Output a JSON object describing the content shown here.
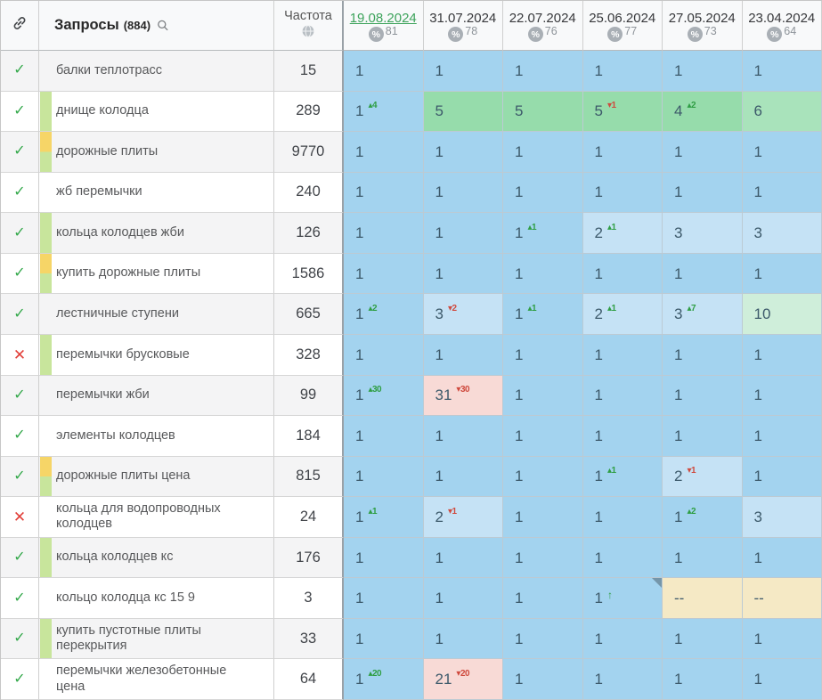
{
  "header": {
    "queries_label": "Запросы",
    "queries_count": "(884)",
    "frequency_label": "Частота",
    "percent_symbol": "%",
    "dates": [
      {
        "label": "19.08.2024",
        "percent": "81",
        "active": true
      },
      {
        "label": "31.07.2024",
        "percent": "78",
        "active": false
      },
      {
        "label": "22.07.2024",
        "percent": "76",
        "active": false
      },
      {
        "label": "25.06.2024",
        "percent": "77",
        "active": false
      },
      {
        "label": "27.05.2024",
        "percent": "73",
        "active": false
      },
      {
        "label": "23.04.2024",
        "percent": "64",
        "active": false
      }
    ]
  },
  "icons": {
    "check": "✓",
    "cross": "✕",
    "delta_up": "▴",
    "delta_down": "▾",
    "arrow_up": "↑"
  },
  "colors": {
    "p1": "#a3d3ef",
    "p2": "#c5e2f5",
    "g5": "#96dcab",
    "g6": "#a9e3bb",
    "g10": "#cfeeda",
    "pink": "#f8dad6",
    "na": "#f5e9c5",
    "strip_green": "#c8e59c",
    "strip_yellow": "#f6d567",
    "check_green": "#35a94c",
    "cross_red": "#e2403a",
    "active_date_green": "#3da35b"
  },
  "rows": [
    {
      "status": "check",
      "strip": "none",
      "keyword": "балки теплотрасс",
      "frequency": "15",
      "cells": [
        {
          "v": "1",
          "bg": "p1"
        },
        {
          "v": "1",
          "bg": "p1"
        },
        {
          "v": "1",
          "bg": "p1"
        },
        {
          "v": "1",
          "bg": "p1"
        },
        {
          "v": "1",
          "bg": "p1"
        },
        {
          "v": "1",
          "bg": "p1"
        }
      ]
    },
    {
      "status": "check",
      "strip": "green",
      "keyword": "днище колодца",
      "frequency": "289",
      "cells": [
        {
          "v": "1",
          "bg": "p1",
          "delta": "4",
          "dir": "up"
        },
        {
          "v": "5",
          "bg": "g5"
        },
        {
          "v": "5",
          "bg": "g5"
        },
        {
          "v": "5",
          "bg": "g5",
          "delta": "1",
          "dir": "down"
        },
        {
          "v": "4",
          "bg": "g5",
          "delta": "2",
          "dir": "up"
        },
        {
          "v": "6",
          "bg": "g6"
        }
      ]
    },
    {
      "status": "check",
      "strip": "yellow_green",
      "keyword": "дорожные плиты",
      "frequency": "9770",
      "cells": [
        {
          "v": "1",
          "bg": "p1"
        },
        {
          "v": "1",
          "bg": "p1"
        },
        {
          "v": "1",
          "bg": "p1"
        },
        {
          "v": "1",
          "bg": "p1"
        },
        {
          "v": "1",
          "bg": "p1"
        },
        {
          "v": "1",
          "bg": "p1"
        }
      ]
    },
    {
      "status": "check",
      "strip": "none",
      "keyword": "жб перемычки",
      "frequency": "240",
      "cells": [
        {
          "v": "1",
          "bg": "p1"
        },
        {
          "v": "1",
          "bg": "p1"
        },
        {
          "v": "1",
          "bg": "p1"
        },
        {
          "v": "1",
          "bg": "p1"
        },
        {
          "v": "1",
          "bg": "p1"
        },
        {
          "v": "1",
          "bg": "p1"
        }
      ]
    },
    {
      "status": "check",
      "strip": "green",
      "keyword": "кольца колодцев жби",
      "frequency": "126",
      "cells": [
        {
          "v": "1",
          "bg": "p1"
        },
        {
          "v": "1",
          "bg": "p1"
        },
        {
          "v": "1",
          "bg": "p1",
          "delta": "1",
          "dir": "up"
        },
        {
          "v": "2",
          "bg": "p2",
          "delta": "1",
          "dir": "up"
        },
        {
          "v": "3",
          "bg": "p2"
        },
        {
          "v": "3",
          "bg": "p2"
        }
      ]
    },
    {
      "status": "check",
      "strip": "yellow_green",
      "keyword": "купить дорожные плиты",
      "frequency": "1586",
      "cells": [
        {
          "v": "1",
          "bg": "p1"
        },
        {
          "v": "1",
          "bg": "p1"
        },
        {
          "v": "1",
          "bg": "p1"
        },
        {
          "v": "1",
          "bg": "p1"
        },
        {
          "v": "1",
          "bg": "p1"
        },
        {
          "v": "1",
          "bg": "p1"
        }
      ]
    },
    {
      "status": "check",
      "strip": "none",
      "keyword": "лестничные ступени",
      "frequency": "665",
      "cells": [
        {
          "v": "1",
          "bg": "p1",
          "delta": "2",
          "dir": "up"
        },
        {
          "v": "3",
          "bg": "p2",
          "delta": "2",
          "dir": "down"
        },
        {
          "v": "1",
          "bg": "p1",
          "delta": "1",
          "dir": "up"
        },
        {
          "v": "2",
          "bg": "p2",
          "delta": "1",
          "dir": "up"
        },
        {
          "v": "3",
          "bg": "p2",
          "delta": "7",
          "dir": "up"
        },
        {
          "v": "10",
          "bg": "g10"
        }
      ]
    },
    {
      "status": "cross",
      "strip": "green",
      "keyword": "перемычки брусковые",
      "frequency": "328",
      "cells": [
        {
          "v": "1",
          "bg": "p1"
        },
        {
          "v": "1",
          "bg": "p1"
        },
        {
          "v": "1",
          "bg": "p1"
        },
        {
          "v": "1",
          "bg": "p1"
        },
        {
          "v": "1",
          "bg": "p1"
        },
        {
          "v": "1",
          "bg": "p1"
        }
      ]
    },
    {
      "status": "check",
      "strip": "none",
      "keyword": "перемычки жби",
      "frequency": "99",
      "cells": [
        {
          "v": "1",
          "bg": "p1",
          "delta": "30",
          "dir": "up"
        },
        {
          "v": "31",
          "bg": "pink",
          "delta": "30",
          "dir": "down"
        },
        {
          "v": "1",
          "bg": "p1"
        },
        {
          "v": "1",
          "bg": "p1"
        },
        {
          "v": "1",
          "bg": "p1"
        },
        {
          "v": "1",
          "bg": "p1"
        }
      ]
    },
    {
      "status": "check",
      "strip": "none",
      "keyword": "элементы колодцев",
      "frequency": "184",
      "cells": [
        {
          "v": "1",
          "bg": "p1"
        },
        {
          "v": "1",
          "bg": "p1"
        },
        {
          "v": "1",
          "bg": "p1"
        },
        {
          "v": "1",
          "bg": "p1"
        },
        {
          "v": "1",
          "bg": "p1"
        },
        {
          "v": "1",
          "bg": "p1"
        }
      ]
    },
    {
      "status": "check",
      "strip": "yellow_green",
      "keyword": "дорожные плиты цена",
      "frequency": "815",
      "cells": [
        {
          "v": "1",
          "bg": "p1"
        },
        {
          "v": "1",
          "bg": "p1"
        },
        {
          "v": "1",
          "bg": "p1"
        },
        {
          "v": "1",
          "bg": "p1",
          "delta": "1",
          "dir": "up"
        },
        {
          "v": "2",
          "bg": "p2",
          "delta": "1",
          "dir": "down"
        },
        {
          "v": "1",
          "bg": "p1"
        }
      ]
    },
    {
      "status": "cross",
      "strip": "none",
      "keyword": "кольца для водопроводных колодцев",
      "frequency": "24",
      "cells": [
        {
          "v": "1",
          "bg": "p1",
          "delta": "1",
          "dir": "up"
        },
        {
          "v": "2",
          "bg": "p2",
          "delta": "1",
          "dir": "down"
        },
        {
          "v": "1",
          "bg": "p1"
        },
        {
          "v": "1",
          "bg": "p1"
        },
        {
          "v": "1",
          "bg": "p1",
          "delta": "2",
          "dir": "up"
        },
        {
          "v": "3",
          "bg": "p2"
        }
      ]
    },
    {
      "status": "check",
      "strip": "green",
      "keyword": "кольца колодцев кс",
      "frequency": "176",
      "cells": [
        {
          "v": "1",
          "bg": "p1"
        },
        {
          "v": "1",
          "bg": "p1"
        },
        {
          "v": "1",
          "bg": "p1"
        },
        {
          "v": "1",
          "bg": "p1"
        },
        {
          "v": "1",
          "bg": "p1"
        },
        {
          "v": "1",
          "bg": "p1"
        }
      ]
    },
    {
      "status": "check",
      "strip": "none",
      "keyword": "кольцо колодца кс 15 9",
      "frequency": "3",
      "cells": [
        {
          "v": "1",
          "bg": "p1"
        },
        {
          "v": "1",
          "bg": "p1"
        },
        {
          "v": "1",
          "bg": "p1"
        },
        {
          "v": "1",
          "bg": "p1",
          "arrow": true,
          "corner": true
        },
        {
          "v": "--",
          "bg": "na"
        },
        {
          "v": "--",
          "bg": "na"
        }
      ]
    },
    {
      "status": "check",
      "strip": "green",
      "keyword": "купить пустотные плиты перекрытия",
      "frequency": "33",
      "cells": [
        {
          "v": "1",
          "bg": "p1"
        },
        {
          "v": "1",
          "bg": "p1"
        },
        {
          "v": "1",
          "bg": "p1"
        },
        {
          "v": "1",
          "bg": "p1"
        },
        {
          "v": "1",
          "bg": "p1"
        },
        {
          "v": "1",
          "bg": "p1"
        }
      ]
    },
    {
      "status": "check",
      "strip": "none",
      "keyword": "перемычки железобетонные цена",
      "frequency": "64",
      "cells": [
        {
          "v": "1",
          "bg": "p1",
          "delta": "20",
          "dir": "up"
        },
        {
          "v": "21",
          "bg": "pink",
          "delta": "20",
          "dir": "down"
        },
        {
          "v": "1",
          "bg": "p1"
        },
        {
          "v": "1",
          "bg": "p1"
        },
        {
          "v": "1",
          "bg": "p1"
        },
        {
          "v": "1",
          "bg": "p1"
        }
      ]
    }
  ]
}
